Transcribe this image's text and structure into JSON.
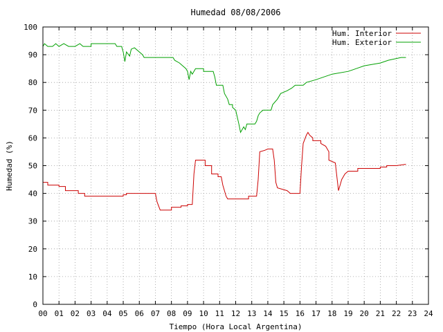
{
  "chart_data": {
    "type": "line",
    "title": "Humedad 08/08/2006",
    "xlabel": "Tiempo (Hora Local Argentina)",
    "ylabel": "Humedad (%)",
    "xlim": [
      0,
      24
    ],
    "ylim": [
      0,
      100
    ],
    "x_ticks": [
      "00",
      "01",
      "02",
      "03",
      "04",
      "05",
      "06",
      "07",
      "08",
      "09",
      "10",
      "11",
      "12",
      "13",
      "14",
      "15",
      "16",
      "17",
      "18",
      "19",
      "20",
      "21",
      "22",
      "23",
      "24"
    ],
    "y_ticks": [
      0,
      10,
      20,
      30,
      40,
      50,
      60,
      70,
      80,
      90,
      100
    ],
    "grid": true,
    "legend_position": "top-right",
    "series": [
      {
        "name": "Hum. Interior",
        "color": "#cc0000",
        "points": [
          [
            0.0,
            44
          ],
          [
            0.3,
            44
          ],
          [
            0.3,
            43
          ],
          [
            1.0,
            43
          ],
          [
            1.0,
            42.5
          ],
          [
            1.4,
            42.5
          ],
          [
            1.4,
            41
          ],
          [
            2.2,
            41
          ],
          [
            2.2,
            40
          ],
          [
            2.6,
            40
          ],
          [
            2.6,
            39
          ],
          [
            5.0,
            39
          ],
          [
            5.0,
            39.5
          ],
          [
            5.2,
            39.5
          ],
          [
            5.2,
            40
          ],
          [
            7.0,
            40
          ],
          [
            7.1,
            37
          ],
          [
            7.3,
            34
          ],
          [
            8.0,
            34
          ],
          [
            8.0,
            35
          ],
          [
            8.6,
            35
          ],
          [
            8.6,
            35.5
          ],
          [
            9.0,
            35.5
          ],
          [
            9.0,
            36
          ],
          [
            9.3,
            36
          ],
          [
            9.4,
            47
          ],
          [
            9.5,
            52
          ],
          [
            10.1,
            52
          ],
          [
            10.1,
            50
          ],
          [
            10.5,
            50
          ],
          [
            10.5,
            47
          ],
          [
            10.9,
            47
          ],
          [
            10.9,
            46
          ],
          [
            11.1,
            46
          ],
          [
            11.2,
            43
          ],
          [
            11.4,
            39
          ],
          [
            11.5,
            38
          ],
          [
            12.8,
            38
          ],
          [
            12.8,
            39
          ],
          [
            13.3,
            39
          ],
          [
            13.4,
            45
          ],
          [
            13.5,
            55
          ],
          [
            13.8,
            55.5
          ],
          [
            14.0,
            56
          ],
          [
            14.3,
            56
          ],
          [
            14.4,
            52
          ],
          [
            14.5,
            44
          ],
          [
            14.6,
            42
          ],
          [
            14.9,
            41.5
          ],
          [
            15.2,
            41
          ],
          [
            15.4,
            40
          ],
          [
            16.0,
            40
          ],
          [
            16.1,
            50
          ],
          [
            16.2,
            58
          ],
          [
            16.4,
            61
          ],
          [
            16.5,
            62
          ],
          [
            16.6,
            61
          ],
          [
            16.8,
            60
          ],
          [
            16.8,
            59
          ],
          [
            17.3,
            59
          ],
          [
            17.3,
            58
          ],
          [
            17.6,
            57
          ],
          [
            17.8,
            55
          ],
          [
            17.8,
            52
          ],
          [
            18.2,
            51
          ],
          [
            18.3,
            46
          ],
          [
            18.4,
            41
          ],
          [
            18.6,
            45
          ],
          [
            18.8,
            47
          ],
          [
            19.0,
            48
          ],
          [
            19.6,
            48
          ],
          [
            19.6,
            49
          ],
          [
            21.0,
            49
          ],
          [
            21.0,
            49.5
          ],
          [
            21.4,
            49.5
          ],
          [
            21.4,
            50
          ],
          [
            22.0,
            50
          ],
          [
            22.6,
            50.5
          ]
        ]
      },
      {
        "name": "Hum. Exterior",
        "color": "#00a000",
        "points": [
          [
            0.0,
            93
          ],
          [
            0.1,
            94
          ],
          [
            0.3,
            93
          ],
          [
            0.6,
            93
          ],
          [
            0.8,
            94
          ],
          [
            1.0,
            93
          ],
          [
            1.3,
            94
          ],
          [
            1.6,
            93
          ],
          [
            2.0,
            93
          ],
          [
            2.3,
            94
          ],
          [
            2.5,
            93
          ],
          [
            3.0,
            93
          ],
          [
            3.0,
            94
          ],
          [
            4.5,
            94
          ],
          [
            4.6,
            93
          ],
          [
            4.9,
            93
          ],
          [
            5.0,
            91
          ],
          [
            5.1,
            87.5
          ],
          [
            5.2,
            91
          ],
          [
            5.4,
            89.5
          ],
          [
            5.5,
            92
          ],
          [
            5.7,
            92.5
          ],
          [
            6.0,
            91
          ],
          [
            6.2,
            90
          ],
          [
            6.3,
            89
          ],
          [
            8.1,
            89
          ],
          [
            8.2,
            88
          ],
          [
            8.5,
            87
          ],
          [
            8.9,
            85
          ],
          [
            9.0,
            84
          ],
          [
            9.1,
            81
          ],
          [
            9.2,
            84
          ],
          [
            9.3,
            83
          ],
          [
            9.5,
            85
          ],
          [
            10.0,
            85
          ],
          [
            10.0,
            84
          ],
          [
            10.6,
            84
          ],
          [
            10.7,
            82
          ],
          [
            10.8,
            79
          ],
          [
            11.2,
            79
          ],
          [
            11.3,
            76
          ],
          [
            11.5,
            74
          ],
          [
            11.6,
            72
          ],
          [
            11.8,
            72
          ],
          [
            11.8,
            71
          ],
          [
            12.0,
            70
          ],
          [
            12.2,
            65
          ],
          [
            12.3,
            62
          ],
          [
            12.5,
            64
          ],
          [
            12.6,
            63
          ],
          [
            12.7,
            65
          ],
          [
            13.2,
            65
          ],
          [
            13.3,
            66
          ],
          [
            13.4,
            68
          ],
          [
            13.5,
            69
          ],
          [
            13.7,
            70
          ],
          [
            14.2,
            70
          ],
          [
            14.3,
            72
          ],
          [
            14.6,
            74
          ],
          [
            14.8,
            76
          ],
          [
            15.2,
            77
          ],
          [
            15.5,
            78
          ],
          [
            15.7,
            79
          ],
          [
            16.2,
            79
          ],
          [
            16.4,
            80
          ],
          [
            17.0,
            81
          ],
          [
            17.5,
            82
          ],
          [
            18.0,
            83
          ],
          [
            19.0,
            84
          ],
          [
            19.5,
            85
          ],
          [
            20.0,
            86
          ],
          [
            21.0,
            87
          ],
          [
            21.5,
            88
          ],
          [
            22.3,
            89
          ],
          [
            22.6,
            89
          ]
        ]
      }
    ]
  }
}
